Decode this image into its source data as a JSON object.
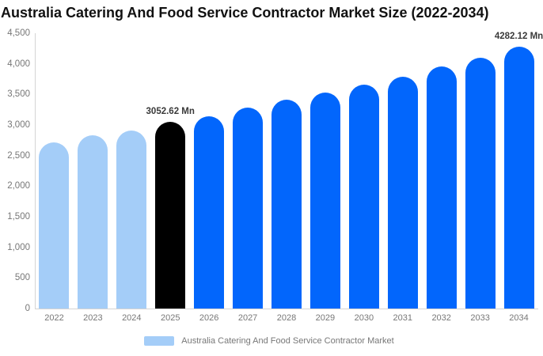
{
  "chart_data": {
    "type": "bar",
    "title": "Australia Catering And Food Service Contractor Market Size (2022-2034)",
    "unit": "Mn",
    "categories": [
      "2022",
      "2023",
      "2024",
      "2025",
      "2026",
      "2027",
      "2028",
      "2029",
      "2030",
      "2031",
      "2032",
      "2033",
      "2034"
    ],
    "values": [
      2720,
      2830,
      2905,
      3052.62,
      3145,
      3285,
      3415,
      3535,
      3655,
      3795,
      3955,
      4105,
      4282.12
    ],
    "bar_colors": [
      "#a4cdf8",
      "#a4cdf8",
      "#a4cdf8",
      "#000000",
      "#0266fc",
      "#0266fc",
      "#0266fc",
      "#0266fc",
      "#0266fc",
      "#0266fc",
      "#0266fc",
      "#0266fc",
      "#0266fc"
    ],
    "labeled_points": [
      {
        "category": "2025",
        "label": "3052.62 Mn"
      },
      {
        "category": "2034",
        "label": "4282.12 Mn"
      }
    ],
    "ylim": [
      0,
      4500
    ],
    "y_ticks": [
      "0",
      "500",
      "1,000",
      "1,500",
      "2,000",
      "2,500",
      "3,000",
      "3,500",
      "4,000",
      "4,500"
    ],
    "grid": false,
    "legend_position": "bottom"
  },
  "legend": {
    "label": "Australia Catering And Food Service Contractor Market",
    "swatch_color": "#a4cdf8"
  },
  "colors": {
    "axis_line": "#d4d4d4",
    "tick_text": "#777777",
    "data_label_text": "#3a3a3a",
    "title_text": "#111111",
    "background": "#ffffff"
  }
}
